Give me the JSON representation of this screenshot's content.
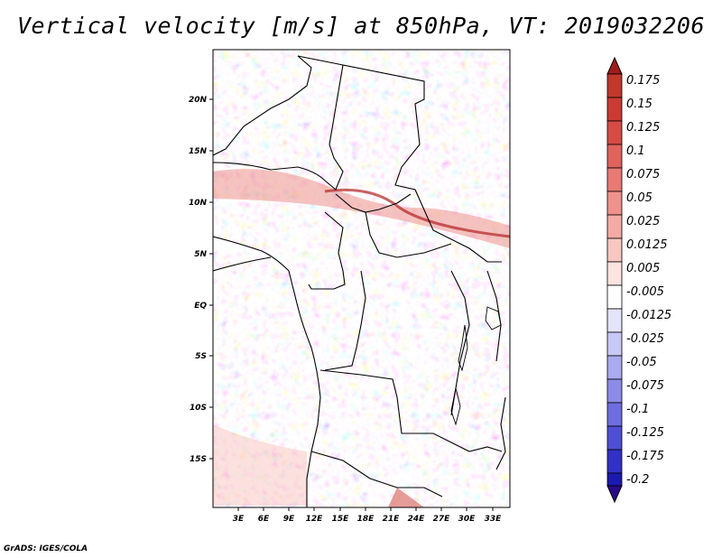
{
  "title": "Vertical velocity [m/s] at 850hPa, VT: 2019032206",
  "credit": "GrADS: IGES/COLA",
  "map": {
    "lat_labels": [
      "20N",
      "15N",
      "10N",
      "5N",
      "EQ",
      "5S",
      "10S",
      "15S"
    ],
    "lon_labels": [
      "3E",
      "6E",
      "9E",
      "12E",
      "15E",
      "18E",
      "21E",
      "24E",
      "27E",
      "30E",
      "33E"
    ]
  },
  "colorbar": {
    "labels": [
      "0.175",
      "0.15",
      "0.125",
      "0.1",
      "0.075",
      "0.05",
      "0.025",
      "0.0125",
      "0.005",
      "-0.005",
      "-0.0125",
      "-0.025",
      "-0.05",
      "-0.075",
      "-0.1",
      "-0.125",
      "-0.175",
      "-0.2"
    ],
    "colors": [
      "#c0392b",
      "#cc3b33",
      "#d74b45",
      "#e0635c",
      "#e87a73",
      "#ef928b",
      "#f5aba4",
      "#f9c7c2",
      "#fde4e1",
      "#ffffff",
      "#e4e4fb",
      "#c8c8f6",
      "#aaaaf0",
      "#8c8ce8",
      "#6e6ee0",
      "#4f4fd6",
      "#3131c8",
      "#1a1ab0",
      "#0f0f96",
      "#2a0a8a"
    ]
  }
}
